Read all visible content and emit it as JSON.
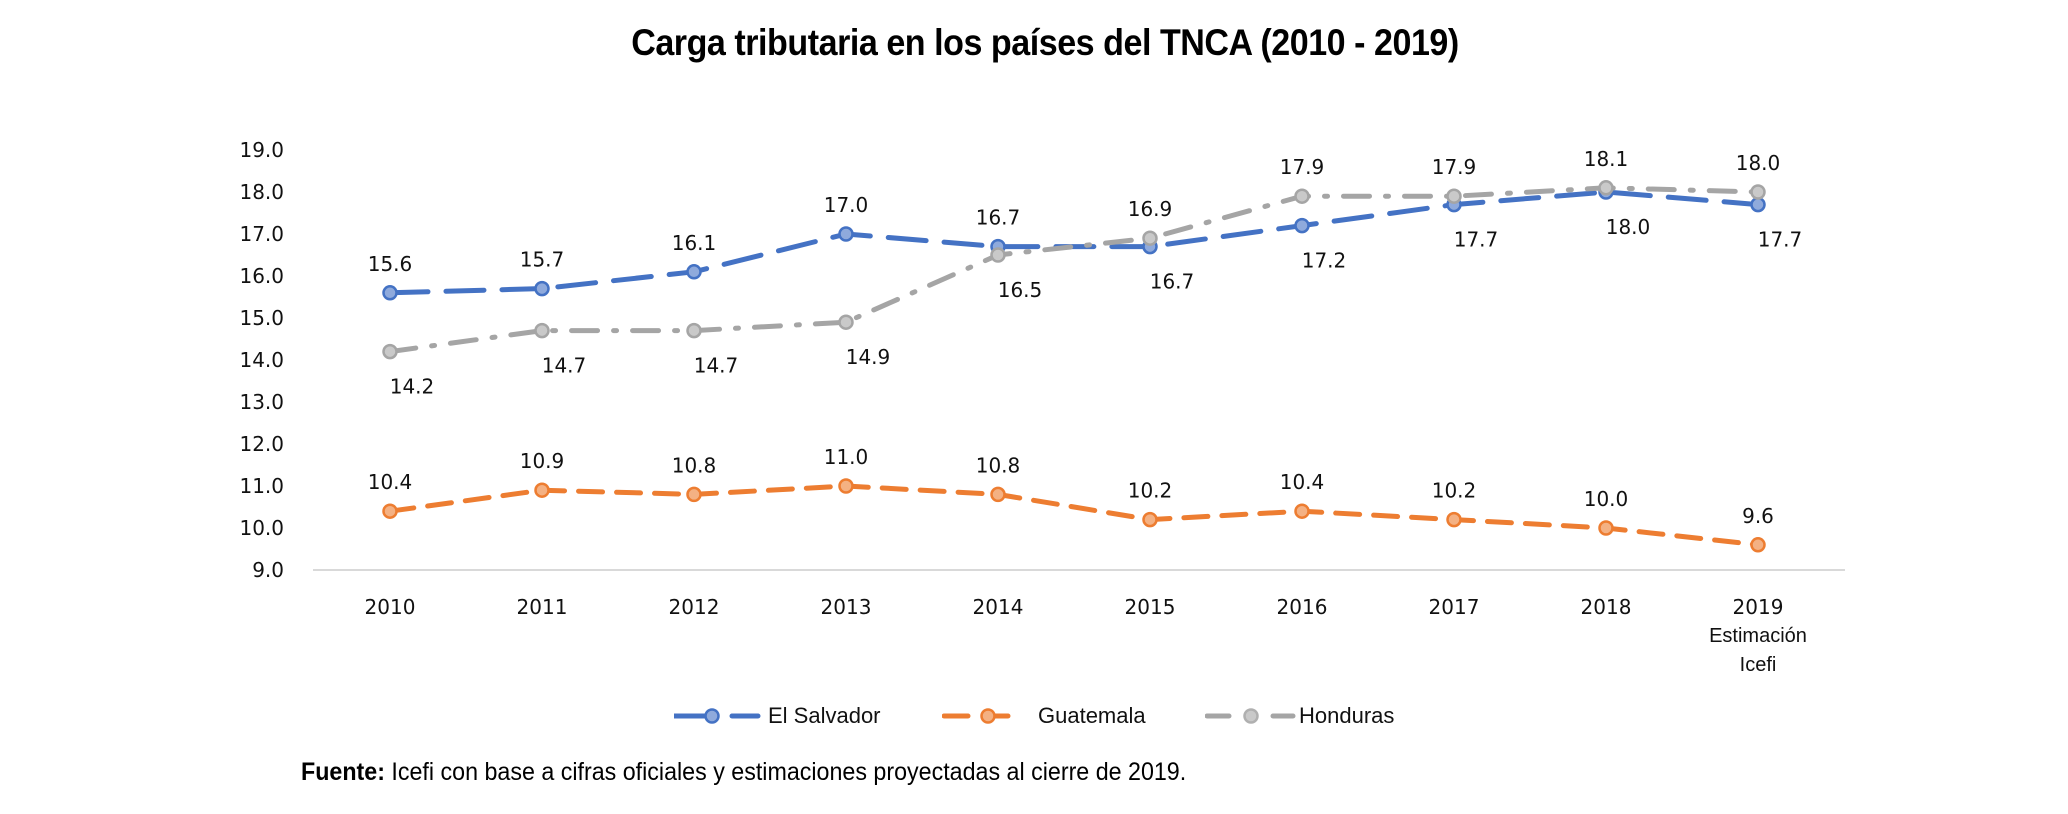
{
  "chart_data": {
    "type": "line",
    "title": "Carga tributaria en los países del TNCA (2010 - 2019)",
    "xlabel": "",
    "ylabel": "",
    "categories": [
      "2010",
      "2011",
      "2012",
      "2013",
      "2014",
      "2015",
      "2016",
      "2017",
      "2018",
      "2019"
    ],
    "category_sublabels": {
      "2019": [
        "Estimación",
        "Icefi"
      ]
    },
    "ylim": [
      9.0,
      19.0
    ],
    "yticks": [
      "9.0",
      "10.0",
      "11.0",
      "12.0",
      "13.0",
      "14.0",
      "15.0",
      "16.0",
      "17.0",
      "18.0",
      "19.0"
    ],
    "grid": false,
    "legend_position": "bottom",
    "series": [
      {
        "name": "El Salvador",
        "color": "#4472C4",
        "marker_fill": "#8FAADC",
        "dash": "long-dash",
        "values": [
          15.6,
          15.7,
          16.1,
          17.0,
          16.7,
          16.7,
          17.2,
          17.7,
          18.0,
          17.7
        ],
        "label_side": [
          "above",
          "above",
          "above",
          "above",
          "above",
          "below",
          "below",
          "below",
          "below",
          "below"
        ]
      },
      {
        "name": "Guatemala",
        "color": "#ED7D31",
        "marker_fill": "#F4B183",
        "dash": "dash",
        "values": [
          10.4,
          10.9,
          10.8,
          11.0,
          10.8,
          10.2,
          10.4,
          10.2,
          10.0,
          9.6
        ],
        "label_side": [
          "above",
          "above",
          "above",
          "above",
          "above",
          "above",
          "above",
          "above",
          "above",
          "above"
        ]
      },
      {
        "name": "Honduras",
        "color": "#A5A5A5",
        "marker_fill": "#C9C9C9",
        "dash": "dash-dot",
        "values": [
          14.2,
          14.7,
          14.7,
          14.9,
          16.5,
          16.9,
          17.9,
          17.9,
          18.1,
          18.0
        ],
        "label_side": [
          "below",
          "below",
          "below",
          "below",
          "below",
          "above",
          "above",
          "above",
          "above",
          "above"
        ]
      }
    ]
  },
  "footer": {
    "source_label": "Fuente:",
    "source_text": " Icefi con base a cifras oficiales y estimaciones proyectadas al cierre de 2019."
  }
}
